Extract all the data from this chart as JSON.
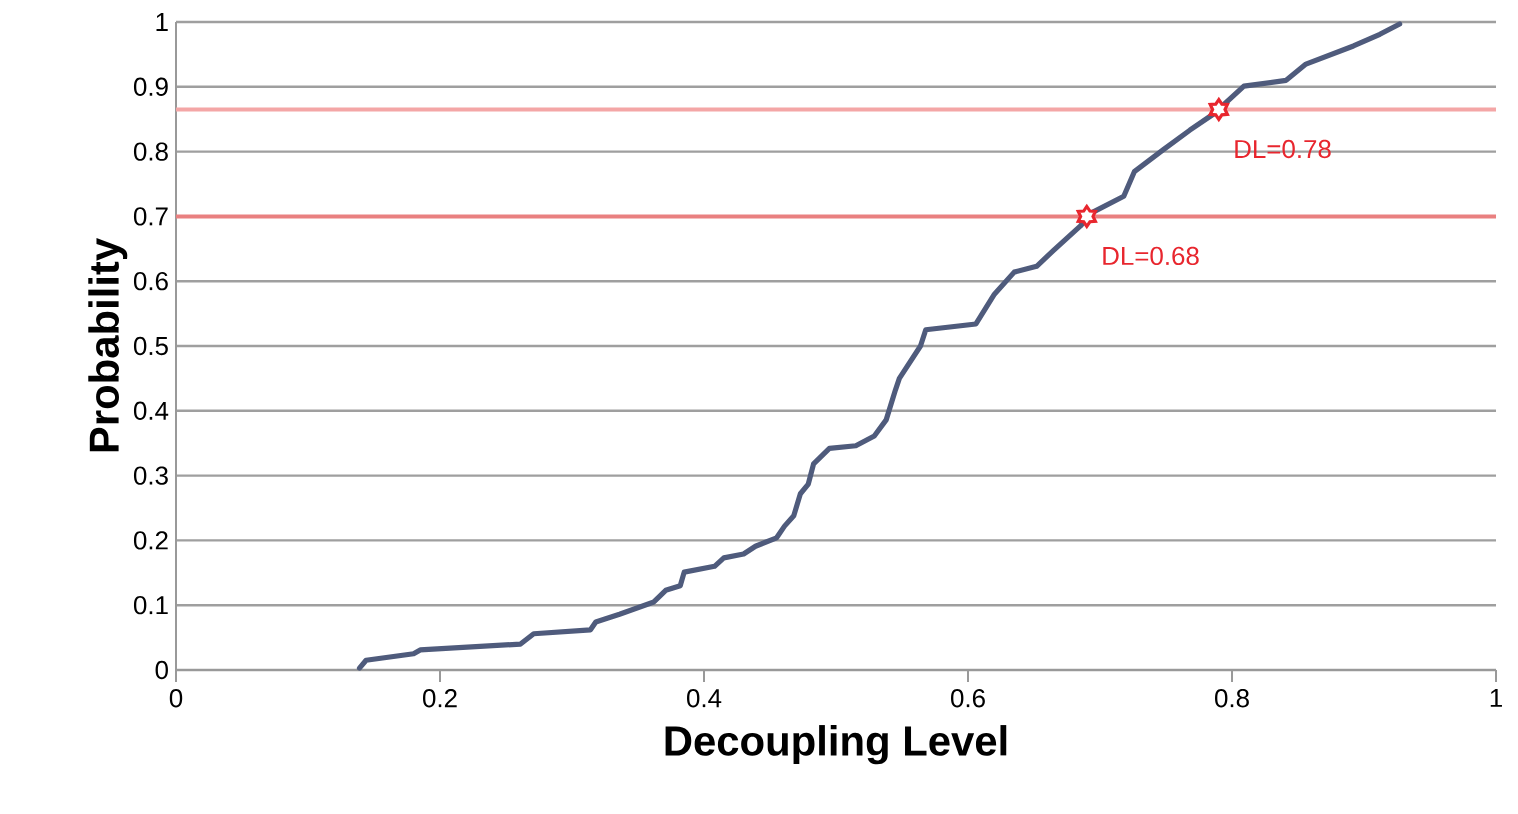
{
  "chart_data": {
    "type": "line",
    "xlabel": "Decoupling Level",
    "ylabel": "Probability",
    "x": [
      0.139,
      0.144,
      0.18,
      0.185,
      0.261,
      0.271,
      0.314,
      0.318,
      0.336,
      0.362,
      0.371,
      0.382,
      0.385,
      0.408,
      0.415,
      0.43,
      0.439,
      0.455,
      0.461,
      0.468,
      0.473,
      0.479,
      0.483,
      0.495,
      0.515,
      0.529,
      0.538,
      0.545,
      0.548,
      0.564,
      0.568,
      0.606,
      0.62,
      0.635,
      0.652,
      0.665,
      0.685,
      0.695,
      0.718,
      0.726,
      0.748,
      0.768,
      0.786,
      0.809,
      0.841,
      0.856,
      0.892,
      0.912,
      0.927
    ],
    "series": [
      {
        "color": "#4f5b7c",
        "values": [
          0.003,
          0.015,
          0.025,
          0.031,
          0.04,
          0.056,
          0.062,
          0.074,
          0.086,
          0.105,
          0.123,
          0.13,
          0.151,
          0.16,
          0.173,
          0.179,
          0.191,
          0.204,
          0.222,
          0.238,
          0.272,
          0.287,
          0.318,
          0.342,
          0.346,
          0.361,
          0.386,
          0.432,
          0.45,
          0.5,
          0.525,
          0.534,
          0.58,
          0.614,
          0.623,
          0.648,
          0.685,
          0.707,
          0.731,
          0.769,
          0.803,
          0.833,
          0.858,
          0.901,
          0.91,
          0.935,
          0.963,
          0.981,
          0.997
        ]
      }
    ],
    "xlim": [
      0,
      1
    ],
    "ylim": [
      0,
      1
    ],
    "xticks": [
      0,
      0.2,
      0.4,
      0.6,
      0.8,
      1
    ],
    "yticks": [
      0,
      0.1,
      0.2,
      0.3,
      0.4,
      0.5,
      0.6,
      0.7,
      0.8,
      0.9,
      1
    ],
    "grid": "y",
    "marker": "none",
    "line_style": "solid",
    "ref_lines": [
      {
        "axis": "y",
        "value": 0.865,
        "color": "#f4a6a6"
      },
      {
        "axis": "y",
        "value": 0.7,
        "color": "#e98080"
      }
    ],
    "annotations": [
      {
        "text": "DL=0.78",
        "x": 0.79,
        "y": 0.865
      },
      {
        "text": "DL=0.68",
        "x": 0.69,
        "y": 0.7
      }
    ]
  }
}
